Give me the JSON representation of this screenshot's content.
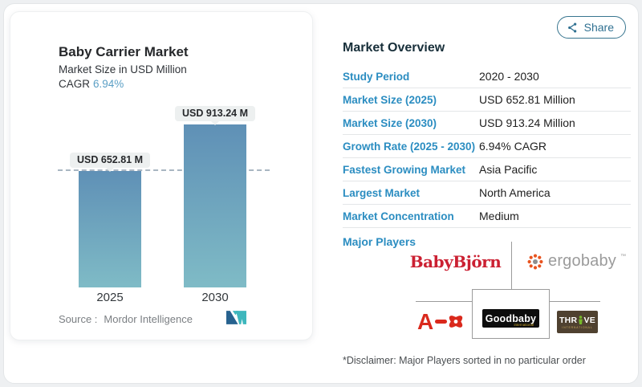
{
  "share": {
    "label": "Share"
  },
  "chart": {
    "title": "Baby Carrier Market",
    "subtitle": "Market Size in USD Million",
    "cagr_label": "CAGR",
    "cagr_value": "6.94%",
    "source_label": "Source :",
    "source_value": "Mordor Intelligence"
  },
  "chart_data": {
    "type": "bar",
    "categories": [
      "2025",
      "2030"
    ],
    "values": [
      652.81,
      913.24
    ],
    "bar_labels": [
      "USD 652.81 M",
      "USD 913.24 M"
    ],
    "title": "Baby Carrier Market",
    "ylabel": "Market Size in USD Million",
    "reference_line": 652.81,
    "grid": false,
    "colors": {
      "bar_top": "#5f90b6",
      "bar_bottom": "#7fbbc6",
      "dashed_line": "#a9b6c2"
    }
  },
  "overview": {
    "heading": "Market Overview",
    "rows": [
      {
        "label": "Study Period",
        "value": "2020 - 2030"
      },
      {
        "label": "Market Size (2025)",
        "value": "USD 652.81 Million"
      },
      {
        "label": "Market Size (2030)",
        "value": "USD 913.24 Million"
      },
      {
        "label": "Growth Rate (2025 - 2030)",
        "value": "6.94% CAGR"
      },
      {
        "label": "Fastest Growing Market",
        "value": "Asia Pacific"
      },
      {
        "label": "Largest Market",
        "value": "North America"
      },
      {
        "label": "Market Concentration",
        "value": "Medium"
      }
    ],
    "major_players_label": "Major Players",
    "players": {
      "babybjorn": "BabyBjörn",
      "ergobaby": "ergobaby",
      "ergobaby_tm": "™",
      "artsana_letter": "A",
      "goodbaby": "Goodbaby",
      "goodbaby_sub": "international",
      "thrive_pre": "THR",
      "thrive_post": "VE",
      "thrive_sub": "INTERNATIONAL"
    },
    "disclaimer": "*Disclaimer: Major Players sorted in no particular order"
  }
}
